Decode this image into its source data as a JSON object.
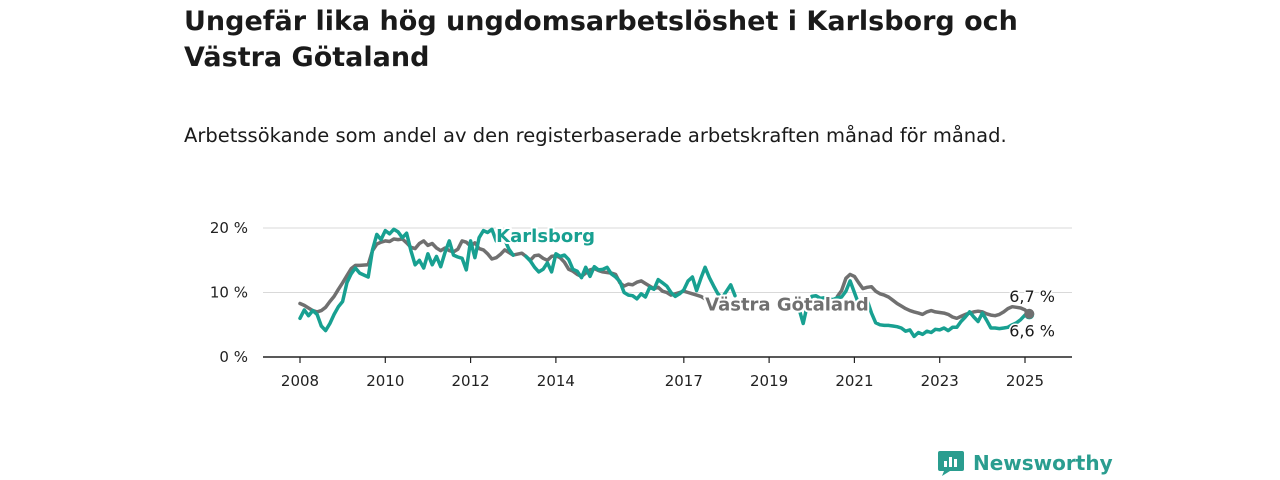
{
  "title": "Ungefär lika hög ungdomsarbetslöshet i Karlsborg och Västra Götaland",
  "subtitle": "Arbetssökande som andel av den registerbaserade arbetskraften månad för månad.",
  "brand": {
    "name": "Newsworthy",
    "color": "#2a9d8f"
  },
  "chart_data": {
    "type": "line",
    "title": "Ungefär lika hög ungdomsarbetslöshet i Karlsborg och Västra Götaland",
    "subtitle": "Arbetssökande som andel av den registerbaserade arbetskraften månad för månad.",
    "xlabel": "",
    "ylabel": "",
    "x_range": [
      2007.5,
      2025.9
    ],
    "ylim": [
      0,
      20
    ],
    "y_ticks": [
      0,
      10,
      20
    ],
    "y_tick_labels": [
      "0 %",
      "10 %",
      "20 %"
    ],
    "x_ticks": [
      2008,
      2010,
      2012,
      2014,
      2017,
      2019,
      2021,
      2023,
      2025
    ],
    "x_tick_labels": [
      "2008",
      "2010",
      "2012",
      "2014",
      "2017",
      "2019",
      "2021",
      "2023",
      "2025"
    ],
    "grid": true,
    "legend": "direct labels on lines",
    "series": [
      {
        "name": "Karlsborg",
        "color": "#18a091",
        "label_pos": [
          2012.6,
          17.8
        ],
        "end_label": "6,6 %",
        "points": [
          [
            2008.0,
            6.0
          ],
          [
            2008.1,
            7.3
          ],
          [
            2008.2,
            6.4
          ],
          [
            2008.3,
            7.2
          ],
          [
            2008.4,
            6.6
          ],
          [
            2008.5,
            4.8
          ],
          [
            2008.6,
            4.1
          ],
          [
            2008.7,
            5.2
          ],
          [
            2008.8,
            6.6
          ],
          [
            2008.9,
            7.8
          ],
          [
            2009.0,
            8.6
          ],
          [
            2009.1,
            11.5
          ],
          [
            2009.2,
            12.9
          ],
          [
            2009.3,
            13.8
          ],
          [
            2009.4,
            13.0
          ],
          [
            2009.6,
            12.4
          ],
          [
            2009.7,
            16.6
          ],
          [
            2009.8,
            19.0
          ],
          [
            2009.9,
            18.2
          ],
          [
            2010.0,
            19.6
          ],
          [
            2010.1,
            19.1
          ],
          [
            2010.2,
            19.8
          ],
          [
            2010.3,
            19.4
          ],
          [
            2010.4,
            18.5
          ],
          [
            2010.5,
            19.2
          ],
          [
            2010.6,
            16.5
          ],
          [
            2010.7,
            14.3
          ],
          [
            2010.8,
            15.0
          ],
          [
            2010.9,
            13.8
          ],
          [
            2011.0,
            16.0
          ],
          [
            2011.1,
            14.3
          ],
          [
            2011.2,
            15.6
          ],
          [
            2011.3,
            14.0
          ],
          [
            2011.4,
            16.2
          ],
          [
            2011.5,
            18.0
          ],
          [
            2011.6,
            15.8
          ],
          [
            2011.7,
            15.5
          ],
          [
            2011.8,
            15.3
          ],
          [
            2011.9,
            13.5
          ],
          [
            2012.0,
            18.0
          ],
          [
            2012.1,
            15.4
          ],
          [
            2012.2,
            18.5
          ],
          [
            2012.3,
            19.6
          ],
          [
            2012.4,
            19.3
          ],
          [
            2012.5,
            19.8
          ],
          [
            2012.6,
            18.0
          ],
          [
            2012.7,
            19.6
          ],
          [
            2012.8,
            18.2
          ],
          [
            2012.9,
            16.7
          ],
          [
            2013.0,
            15.8
          ],
          [
            2013.3,
            15.6
          ],
          [
            2013.4,
            14.9
          ],
          [
            2013.5,
            13.9
          ],
          [
            2013.6,
            13.2
          ],
          [
            2013.7,
            13.6
          ],
          [
            2013.8,
            14.6
          ],
          [
            2013.9,
            13.2
          ],
          [
            2014.0,
            16.0
          ],
          [
            2014.1,
            15.6
          ],
          [
            2014.2,
            15.8
          ],
          [
            2014.3,
            15.1
          ],
          [
            2014.4,
            13.6
          ],
          [
            2014.5,
            13.3
          ],
          [
            2014.6,
            12.3
          ],
          [
            2014.7,
            13.9
          ],
          [
            2014.8,
            12.5
          ],
          [
            2014.9,
            14.0
          ],
          [
            2015.0,
            13.5
          ],
          [
            2015.1,
            13.6
          ],
          [
            2015.2,
            13.9
          ],
          [
            2015.3,
            12.9
          ],
          [
            2015.4,
            12.4
          ],
          [
            2015.5,
            11.7
          ],
          [
            2015.6,
            10.0
          ],
          [
            2015.7,
            9.6
          ],
          [
            2015.8,
            9.5
          ],
          [
            2015.9,
            9.0
          ],
          [
            2016.0,
            9.8
          ],
          [
            2016.1,
            9.3
          ],
          [
            2016.2,
            10.8
          ],
          [
            2016.3,
            10.5
          ],
          [
            2016.4,
            12.0
          ],
          [
            2016.5,
            11.5
          ],
          [
            2016.6,
            11.0
          ],
          [
            2016.7,
            10.0
          ],
          [
            2016.8,
            9.4
          ],
          [
            2016.9,
            9.8
          ],
          [
            2017.0,
            10.4
          ],
          [
            2017.1,
            11.8
          ],
          [
            2017.2,
            12.4
          ],
          [
            2017.3,
            10.3
          ],
          [
            2017.4,
            12.2
          ],
          [
            2017.5,
            13.9
          ],
          [
            2017.6,
            12.3
          ],
          [
            2017.7,
            11.0
          ],
          [
            2017.8,
            9.8
          ],
          [
            2017.9,
            9.2
          ],
          [
            2018.0,
            10.2
          ],
          [
            2018.1,
            11.2
          ],
          [
            2018.2,
            9.5
          ],
          [
            2019.7,
            7.5
          ],
          [
            2019.8,
            5.2
          ],
          [
            2019.9,
            8.2
          ],
          [
            2020.0,
            9.4
          ],
          [
            2020.1,
            9.5
          ],
          [
            2020.2,
            9.1
          ],
          [
            2020.3,
            9.2
          ],
          [
            2020.4,
            9.0
          ],
          [
            2020.5,
            8.9
          ],
          [
            2020.6,
            9.2
          ],
          [
            2020.7,
            9.3
          ],
          [
            2020.8,
            10.2
          ],
          [
            2020.9,
            11.8
          ],
          [
            2021.0,
            10.0
          ],
          [
            2021.1,
            8.2
          ],
          [
            2021.2,
            8.6
          ],
          [
            2021.3,
            8.8
          ],
          [
            2021.4,
            6.8
          ],
          [
            2021.5,
            5.3
          ],
          [
            2021.6,
            5.0
          ],
          [
            2021.7,
            4.9
          ],
          [
            2021.8,
            4.9
          ],
          [
            2021.9,
            4.8
          ],
          [
            2022.0,
            4.7
          ],
          [
            2022.1,
            4.5
          ],
          [
            2022.2,
            4.0
          ],
          [
            2022.3,
            4.2
          ],
          [
            2022.4,
            3.2
          ],
          [
            2022.5,
            3.8
          ],
          [
            2022.6,
            3.5
          ],
          [
            2022.7,
            4.0
          ],
          [
            2022.8,
            3.8
          ],
          [
            2022.9,
            4.3
          ],
          [
            2023.0,
            4.2
          ],
          [
            2023.1,
            4.5
          ],
          [
            2023.2,
            4.1
          ],
          [
            2023.3,
            4.6
          ],
          [
            2023.4,
            4.6
          ],
          [
            2023.5,
            5.5
          ],
          [
            2023.6,
            6.2
          ],
          [
            2023.7,
            7.0
          ],
          [
            2023.8,
            6.2
          ],
          [
            2023.9,
            5.5
          ],
          [
            2024.0,
            6.8
          ],
          [
            2024.1,
            5.7
          ],
          [
            2024.2,
            4.5
          ],
          [
            2024.3,
            4.5
          ],
          [
            2024.4,
            4.4
          ],
          [
            2024.5,
            4.5
          ],
          [
            2024.6,
            4.6
          ],
          [
            2024.7,
            5.0
          ],
          [
            2024.8,
            5.3
          ],
          [
            2024.9,
            5.8
          ],
          [
            2025.0,
            6.5
          ],
          [
            2025.1,
            6.6
          ]
        ]
      },
      {
        "name": "Västra Götaland",
        "color": "#707070",
        "label_pos": [
          2017.5,
          7.2
        ],
        "end_label": "6,7 %",
        "points": [
          [
            2008.0,
            8.3
          ],
          [
            2008.1,
            8.0
          ],
          [
            2008.2,
            7.6
          ],
          [
            2008.3,
            7.2
          ],
          [
            2008.4,
            7.0
          ],
          [
            2008.5,
            7.2
          ],
          [
            2008.6,
            7.7
          ],
          [
            2008.7,
            8.6
          ],
          [
            2008.8,
            9.4
          ],
          [
            2008.9,
            10.5
          ],
          [
            2009.0,
            11.5
          ],
          [
            2009.1,
            12.6
          ],
          [
            2009.2,
            13.7
          ],
          [
            2009.3,
            14.2
          ],
          [
            2009.4,
            14.2
          ],
          [
            2009.6,
            14.3
          ],
          [
            2009.7,
            16.5
          ],
          [
            2009.8,
            17.5
          ],
          [
            2009.9,
            17.8
          ],
          [
            2010.0,
            18.0
          ],
          [
            2010.1,
            17.9
          ],
          [
            2010.2,
            18.3
          ],
          [
            2010.3,
            18.2
          ],
          [
            2010.4,
            18.3
          ],
          [
            2010.5,
            17.7
          ],
          [
            2010.6,
            17.0
          ],
          [
            2010.7,
            16.8
          ],
          [
            2010.8,
            17.6
          ],
          [
            2010.9,
            18.0
          ],
          [
            2011.0,
            17.3
          ],
          [
            2011.1,
            17.6
          ],
          [
            2011.2,
            16.9
          ],
          [
            2011.3,
            16.5
          ],
          [
            2011.4,
            16.9
          ],
          [
            2011.5,
            16.5
          ],
          [
            2011.6,
            16.3
          ],
          [
            2011.7,
            16.7
          ],
          [
            2011.8,
            18.0
          ],
          [
            2011.9,
            17.8
          ],
          [
            2012.0,
            17.2
          ],
          [
            2012.1,
            17.7
          ],
          [
            2012.2,
            16.8
          ],
          [
            2012.3,
            16.6
          ],
          [
            2012.4,
            16.0
          ],
          [
            2012.5,
            15.2
          ],
          [
            2012.6,
            15.4
          ],
          [
            2012.7,
            15.9
          ],
          [
            2012.8,
            16.6
          ],
          [
            2012.9,
            16.2
          ],
          [
            2013.0,
            15.8
          ],
          [
            2013.2,
            16.1
          ],
          [
            2013.3,
            15.6
          ],
          [
            2013.4,
            15.0
          ],
          [
            2013.5,
            15.7
          ],
          [
            2013.6,
            15.8
          ],
          [
            2013.7,
            15.3
          ],
          [
            2013.8,
            15.0
          ],
          [
            2013.9,
            15.6
          ],
          [
            2014.0,
            15.7
          ],
          [
            2014.1,
            15.4
          ],
          [
            2014.2,
            14.7
          ],
          [
            2014.3,
            13.6
          ],
          [
            2014.4,
            13.3
          ],
          [
            2014.5,
            12.8
          ],
          [
            2014.6,
            12.5
          ],
          [
            2014.7,
            13.0
          ],
          [
            2014.8,
            13.5
          ],
          [
            2014.9,
            13.7
          ],
          [
            2015.0,
            13.4
          ],
          [
            2015.1,
            13.2
          ],
          [
            2015.2,
            13.1
          ],
          [
            2015.3,
            13.0
          ],
          [
            2015.4,
            12.8
          ],
          [
            2015.5,
            11.5
          ],
          [
            2015.6,
            11.0
          ],
          [
            2015.7,
            11.3
          ],
          [
            2015.8,
            11.2
          ],
          [
            2015.9,
            11.6
          ],
          [
            2016.0,
            11.8
          ],
          [
            2016.1,
            11.4
          ],
          [
            2016.2,
            11.0
          ],
          [
            2016.3,
            10.6
          ],
          [
            2016.4,
            10.8
          ],
          [
            2016.5,
            10.2
          ],
          [
            2016.6,
            10.0
          ],
          [
            2016.7,
            9.6
          ],
          [
            2016.8,
            9.8
          ],
          [
            2016.9,
            10.0
          ],
          [
            2017.0,
            10.2
          ],
          [
            2017.1,
            10.0
          ],
          [
            2017.2,
            9.8
          ],
          [
            2017.3,
            9.6
          ],
          [
            2017.4,
            9.4
          ],
          [
            2017.5,
            9.0
          ],
          [
            2017.6,
            8.3
          ],
          [
            2017.7,
            7.8
          ],
          [
            2020.6,
            9.4
          ],
          [
            2020.7,
            10.3
          ],
          [
            2020.8,
            12.2
          ],
          [
            2020.9,
            12.8
          ],
          [
            2021.0,
            12.5
          ],
          [
            2021.1,
            11.5
          ],
          [
            2021.2,
            10.6
          ],
          [
            2021.3,
            10.8
          ],
          [
            2021.4,
            10.9
          ],
          [
            2021.5,
            10.2
          ],
          [
            2021.6,
            9.8
          ],
          [
            2021.7,
            9.6
          ],
          [
            2021.8,
            9.3
          ],
          [
            2021.9,
            8.8
          ],
          [
            2022.0,
            8.3
          ],
          [
            2022.1,
            7.9
          ],
          [
            2022.2,
            7.5
          ],
          [
            2022.3,
            7.2
          ],
          [
            2022.4,
            7.0
          ],
          [
            2022.5,
            6.8
          ],
          [
            2022.6,
            6.6
          ],
          [
            2022.7,
            7.0
          ],
          [
            2022.8,
            7.2
          ],
          [
            2022.9,
            7.0
          ],
          [
            2023.0,
            6.9
          ],
          [
            2023.1,
            6.8
          ],
          [
            2023.2,
            6.6
          ],
          [
            2023.3,
            6.2
          ],
          [
            2023.4,
            6.0
          ],
          [
            2023.5,
            6.3
          ],
          [
            2023.6,
            6.6
          ],
          [
            2023.7,
            6.8
          ],
          [
            2023.8,
            7.0
          ],
          [
            2023.9,
            7.1
          ],
          [
            2024.0,
            7.0
          ],
          [
            2024.1,
            6.7
          ],
          [
            2024.2,
            6.5
          ],
          [
            2024.3,
            6.4
          ],
          [
            2024.4,
            6.6
          ],
          [
            2024.5,
            7.0
          ],
          [
            2024.6,
            7.5
          ],
          [
            2024.7,
            7.8
          ],
          [
            2024.8,
            7.7
          ],
          [
            2024.9,
            7.6
          ],
          [
            2025.0,
            7.3
          ],
          [
            2025.1,
            6.7
          ]
        ]
      }
    ]
  }
}
